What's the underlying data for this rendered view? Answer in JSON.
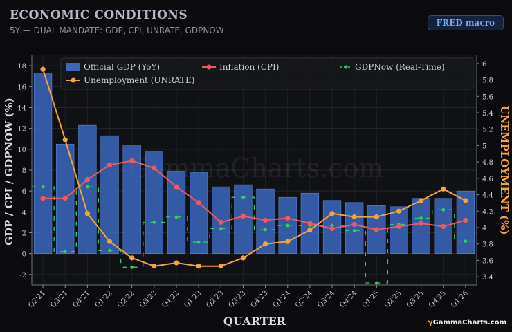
{
  "header": {
    "title": "ECONOMIC CONDITIONS",
    "subtitle": "5Y — DUAL MANDATE: GDP, CPI, UNRATE, GDPNOW",
    "badge": "FRED macro"
  },
  "watermark": "GammaCharts.com",
  "brand": {
    "mark": "γ",
    "text": "GammaCharts.com"
  },
  "colors": {
    "gdp_bar": "#3b66be",
    "cpi": "#f05a5e",
    "gdpnow": "#2ed15b",
    "unrate": "#f5a33a",
    "background": "#0b0b0d"
  },
  "chart_data": {
    "type": "bar",
    "xlabel": "QUARTER",
    "ylabel": "GDP / CPI / GDPNOW (%)",
    "y2label": "UNEMPLOYMENT (%)",
    "ylim": [
      -3,
      19
    ],
    "y2lim": [
      3.3,
      6.1
    ],
    "yticks": [
      -2,
      0,
      2,
      4,
      6,
      8,
      10,
      12,
      14,
      16,
      18
    ],
    "y2ticks": [
      3.4,
      3.6,
      3.8,
      4,
      4.2,
      4.4,
      4.6,
      4.8,
      5,
      5.2,
      5.4,
      5.6,
      5.8,
      6
    ],
    "grid": true,
    "legend_position": "top-left",
    "categories": [
      "Q2'21",
      "Q3'21",
      "Q4'21",
      "Q1'22",
      "Q2'22",
      "Q3'22",
      "Q4'22",
      "Q1'23",
      "Q2'23",
      "Q3'23",
      "Q4'23",
      "Q1'24",
      "Q2'24",
      "Q3'24",
      "Q4'24",
      "Q1'25",
      "Q2'25",
      "Q3'25",
      "Q4'25",
      "Q1'26"
    ],
    "series": [
      {
        "name": "Official GDP (YoY)",
        "kind": "bar",
        "axis": "left",
        "values": [
          17.3,
          10.5,
          12.3,
          11.3,
          10.4,
          9.8,
          7.9,
          7.8,
          6.4,
          6.6,
          6.2,
          5.4,
          5.8,
          5.1,
          4.9,
          4.6,
          4.5,
          5.3,
          5.3,
          6.0
        ]
      },
      {
        "name": "Inflation (CPI)",
        "kind": "line",
        "axis": "left",
        "values": [
          5.3,
          5.3,
          7.1,
          8.5,
          8.9,
          8.2,
          6.4,
          4.9,
          3.0,
          3.6,
          3.2,
          3.4,
          2.9,
          2.4,
          2.8,
          2.3,
          2.6,
          2.9,
          2.6,
          3.2
        ]
      },
      {
        "name": "GDPNow (Real-Time)",
        "kind": "step",
        "axis": "left",
        "values": [
          6.4,
          0.2,
          6.4,
          0.3,
          -1.3,
          3.0,
          3.5,
          1.1,
          2.4,
          5.4,
          2.3,
          2.7,
          2.7,
          2.7,
          2.2,
          -2.8,
          2.8,
          3.4,
          4.2,
          1.2
        ]
      },
      {
        "name": "Unemployment (UNRATE)",
        "kind": "line",
        "axis": "right",
        "values": [
          5.93,
          5.07,
          4.17,
          3.83,
          3.63,
          3.53,
          3.57,
          3.53,
          3.53,
          3.63,
          3.8,
          3.83,
          3.97,
          4.17,
          4.13,
          4.13,
          4.2,
          4.33,
          4.47,
          4.33
        ]
      }
    ]
  }
}
